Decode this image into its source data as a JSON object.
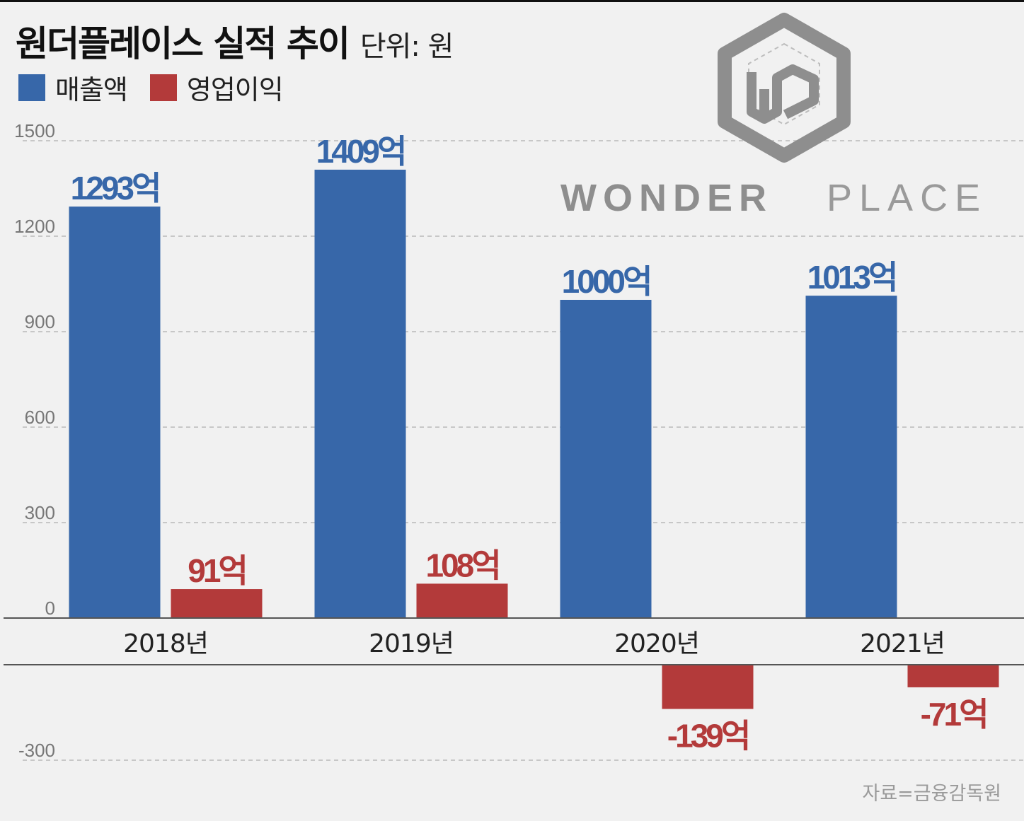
{
  "header": {
    "title": "원더플레이스 실적 추이",
    "unit": "단위: 원"
  },
  "legend": [
    {
      "label": "매출액",
      "color": "#3767a9"
    },
    {
      "label": "영업이익",
      "color": "#b33a3a"
    }
  ],
  "logo": {
    "wordmark_left": "WONDER",
    "wordmark_right": "PLACE",
    "monogram": "WP"
  },
  "source": "자료=금융감독원",
  "chart_data": {
    "type": "bar",
    "categories": [
      "2018년",
      "2019년",
      "2020년",
      "2021년"
    ],
    "y_ticks": [
      "1500",
      "1200",
      "900",
      "600",
      "300",
      "0",
      "-300"
    ],
    "ylim": [
      -300,
      1500
    ],
    "grid": true,
    "series": [
      {
        "name": "매출액",
        "color": "#3767a9",
        "values": [
          1293,
          1409,
          1000,
          1013
        ],
        "labels": [
          "1293억",
          "1409억",
          "1000억",
          "1013억"
        ]
      },
      {
        "name": "영업이익",
        "color": "#b33a3a",
        "values": [
          91,
          108,
          -139,
          -71
        ],
        "labels": [
          "91억",
          "108억",
          "-139억",
          "-71억"
        ]
      }
    ]
  }
}
